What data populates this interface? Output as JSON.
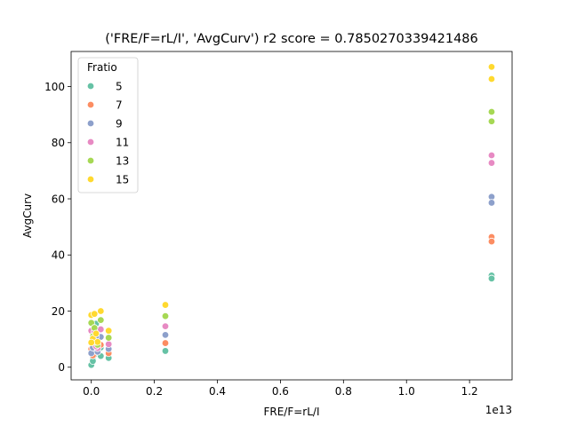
{
  "chart_data": {
    "type": "scatter",
    "title": "('FRE/F=rL/I', 'AvgCurv') r2 score = 0.7850270339421486",
    "xlabel": "FRE/F=rL/I",
    "ylabel": "AvgCurv",
    "x_offset_text": "1e13",
    "x_scale_factor": 10000000000000.0,
    "xlim": [
      -0.064,
      1.335
    ],
    "ylim": [
      -4.5,
      112.5
    ],
    "x_ticks": [
      0.0,
      0.2,
      0.4,
      0.6,
      0.8,
      1.0,
      1.2
    ],
    "x_tick_labels": [
      "0.0",
      "0.2",
      "0.4",
      "0.6",
      "0.8",
      "1.0",
      "1.2"
    ],
    "y_ticks": [
      0,
      20,
      40,
      60,
      80,
      100
    ],
    "y_tick_labels": [
      "0",
      "20",
      "40",
      "60",
      "80",
      "100"
    ],
    "grid": false,
    "legend": {
      "title": "Fratio",
      "placement": "upper-left"
    },
    "series": [
      {
        "name": "5",
        "color": "#66c2a5",
        "points": [
          [
            0.0,
            0.8
          ],
          [
            0.005,
            3.0
          ],
          [
            0.01,
            4.5
          ],
          [
            0.02,
            6.0
          ],
          [
            0.005,
            2.2
          ],
          [
            0.03,
            4.0
          ],
          [
            0.015,
            5.5
          ],
          [
            0.055,
            3.3
          ],
          [
            0.03,
            7.0
          ],
          [
            0.015,
            15.5
          ],
          [
            0.235,
            5.8
          ],
          [
            1.27,
            32.7
          ],
          [
            1.27,
            31.6
          ]
        ]
      },
      {
        "name": "7",
        "color": "#fc8d62",
        "points": [
          [
            0.0,
            6.5
          ],
          [
            0.005,
            4.2
          ],
          [
            0.01,
            8.5
          ],
          [
            0.02,
            7.5
          ],
          [
            0.03,
            8.0
          ],
          [
            0.055,
            5.0
          ],
          [
            0.015,
            10.0
          ],
          [
            0.235,
            8.6
          ],
          [
            1.27,
            46.4
          ],
          [
            1.27,
            44.8
          ]
        ]
      },
      {
        "name": "9",
        "color": "#8da0cb",
        "points": [
          [
            0.0,
            5.0
          ],
          [
            0.005,
            7.0
          ],
          [
            0.01,
            9.5
          ],
          [
            0.02,
            5.5
          ],
          [
            0.03,
            10.8
          ],
          [
            0.055,
            6.5
          ],
          [
            0.015,
            11.0
          ],
          [
            0.235,
            11.5
          ],
          [
            1.27,
            60.7
          ],
          [
            1.27,
            58.6
          ]
        ]
      },
      {
        "name": "11",
        "color": "#e78ac3",
        "points": [
          [
            0.0,
            13.0
          ],
          [
            0.005,
            9.5
          ],
          [
            0.01,
            12.5
          ],
          [
            0.02,
            6.8
          ],
          [
            0.03,
            13.5
          ],
          [
            0.055,
            8.2
          ],
          [
            0.015,
            7.5
          ],
          [
            0.235,
            14.6
          ],
          [
            1.27,
            75.5
          ],
          [
            1.27,
            72.8
          ]
        ]
      },
      {
        "name": "13",
        "color": "#a6d854",
        "points": [
          [
            0.0,
            15.8
          ],
          [
            0.005,
            11.0
          ],
          [
            0.01,
            14.0
          ],
          [
            0.02,
            8.0
          ],
          [
            0.03,
            16.8
          ],
          [
            0.055,
            10.5
          ],
          [
            0.015,
            9.0
          ],
          [
            0.235,
            18.2
          ],
          [
            1.27,
            91.0
          ],
          [
            1.27,
            87.6
          ]
        ]
      },
      {
        "name": "15",
        "color": "#ffd92f",
        "points": [
          [
            0.0,
            18.6
          ],
          [
            0.005,
            10.2
          ],
          [
            0.01,
            19.0
          ],
          [
            0.02,
            9.0
          ],
          [
            0.03,
            20.0
          ],
          [
            0.055,
            13.0
          ],
          [
            0.015,
            12.0
          ],
          [
            0.0,
            8.8
          ],
          [
            0.235,
            22.2
          ],
          [
            1.27,
            107.0
          ],
          [
            1.27,
            102.7
          ]
        ]
      }
    ]
  }
}
